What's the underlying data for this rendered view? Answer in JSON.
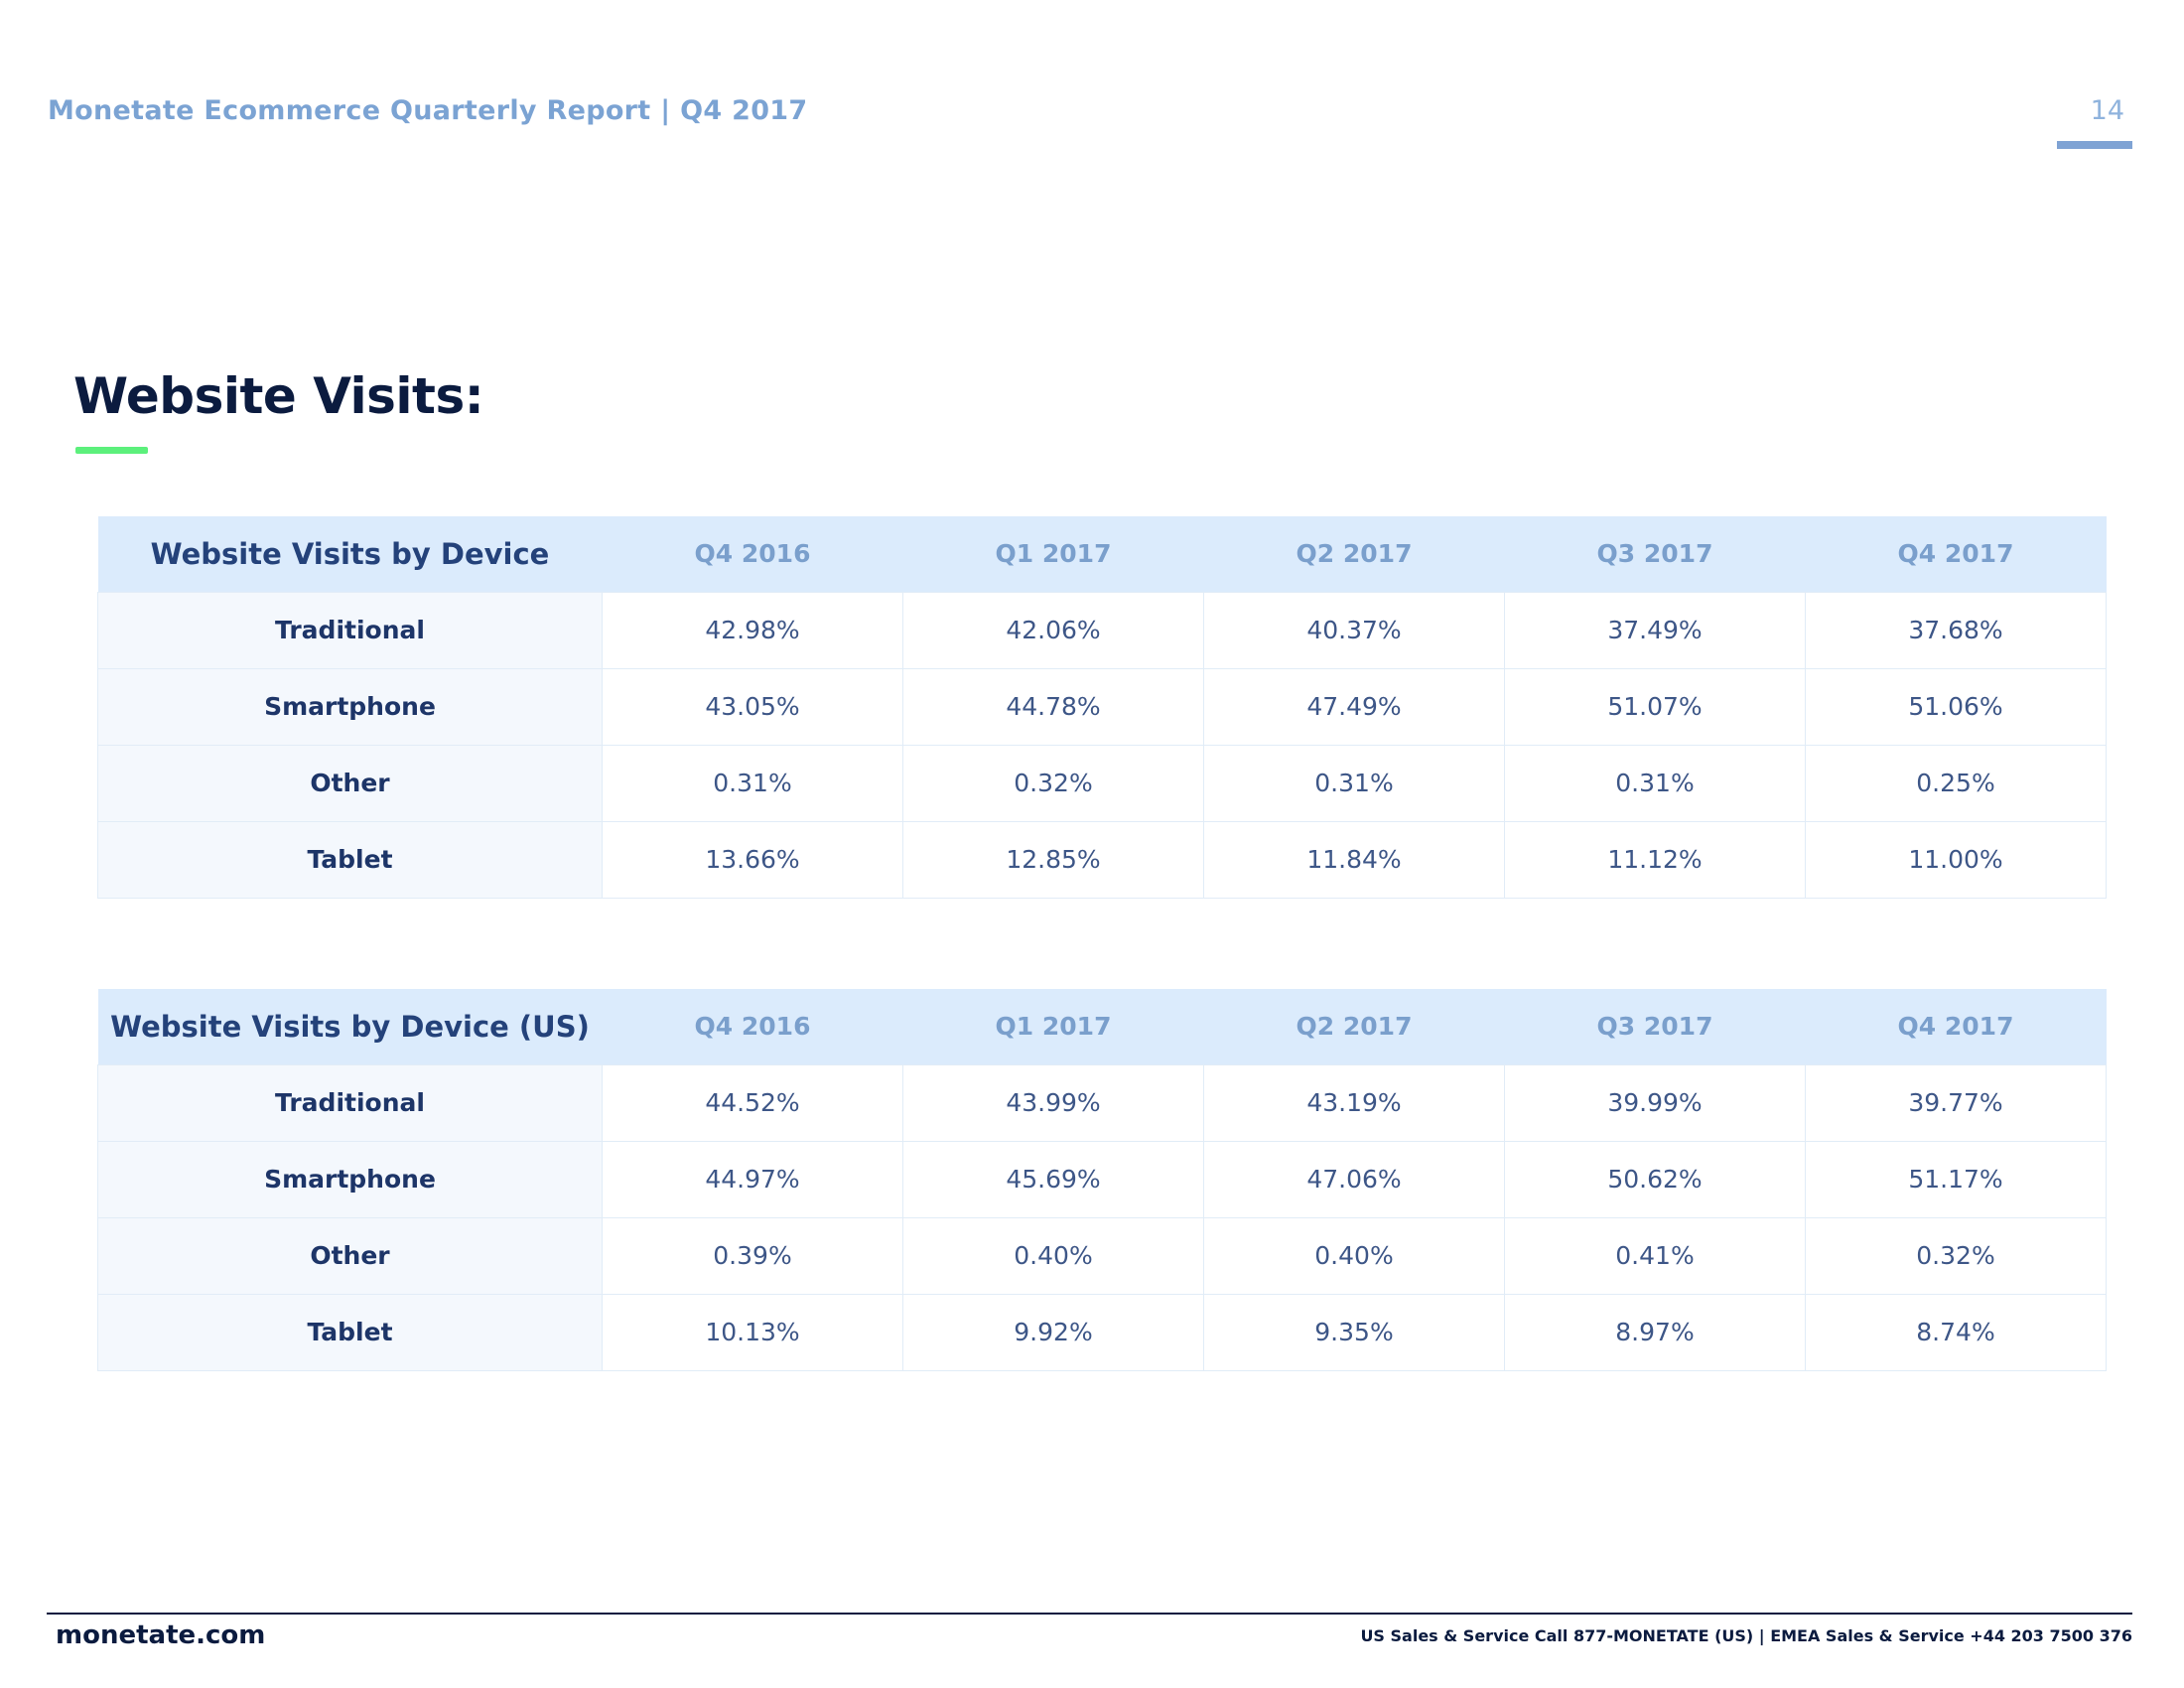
{
  "header": {
    "report_title": "Monetate Ecommerce Quarterly Report | Q4 2017",
    "page_number": "14"
  },
  "section": {
    "title": "Website Visits:"
  },
  "tables": [
    {
      "title": "Website Visits by Device",
      "columns": [
        "Q4 2016",
        "Q1 2017",
        "Q2 2017",
        "Q3 2017",
        "Q4 2017"
      ],
      "rows": [
        {
          "label": "Traditional",
          "values": [
            "42.98%",
            "42.06%",
            "40.37%",
            "37.49%",
            "37.68%"
          ]
        },
        {
          "label": "Smartphone",
          "values": [
            "43.05%",
            "44.78%",
            "47.49%",
            "51.07%",
            "51.06%"
          ]
        },
        {
          "label": "Other",
          "values": [
            "0.31%",
            "0.32%",
            "0.31%",
            "0.31%",
            "0.25%"
          ]
        },
        {
          "label": "Tablet",
          "values": [
            "13.66%",
            "12.85%",
            "11.84%",
            "11.12%",
            "11.00%"
          ]
        }
      ]
    },
    {
      "title": "Website Visits by Device (US)",
      "columns": [
        "Q4 2016",
        "Q1 2017",
        "Q2 2017",
        "Q3 2017",
        "Q4 2017"
      ],
      "rows": [
        {
          "label": "Traditional",
          "values": [
            "44.52%",
            "43.99%",
            "43.19%",
            "39.99%",
            "39.77%"
          ]
        },
        {
          "label": "Smartphone",
          "values": [
            "44.97%",
            "45.69%",
            "47.06%",
            "50.62%",
            "51.17%"
          ]
        },
        {
          "label": "Other",
          "values": [
            "0.39%",
            "0.40%",
            "0.40%",
            "0.41%",
            "0.32%"
          ]
        },
        {
          "label": "Tablet",
          "values": [
            "10.13%",
            "9.92%",
            "9.35%",
            "8.97%",
            "8.74%"
          ]
        }
      ]
    }
  ],
  "footer": {
    "site": "monetate.com",
    "contact": "US Sales & Service Call 877-MONETATE (US) | EMEA Sales & Service +44 203 7500 376"
  },
  "colors": {
    "header_text": "#7ba3d3",
    "title_text": "#0b1b3f",
    "accent_green": "#5cf07c",
    "table_header_bg": "#dbebfc"
  }
}
